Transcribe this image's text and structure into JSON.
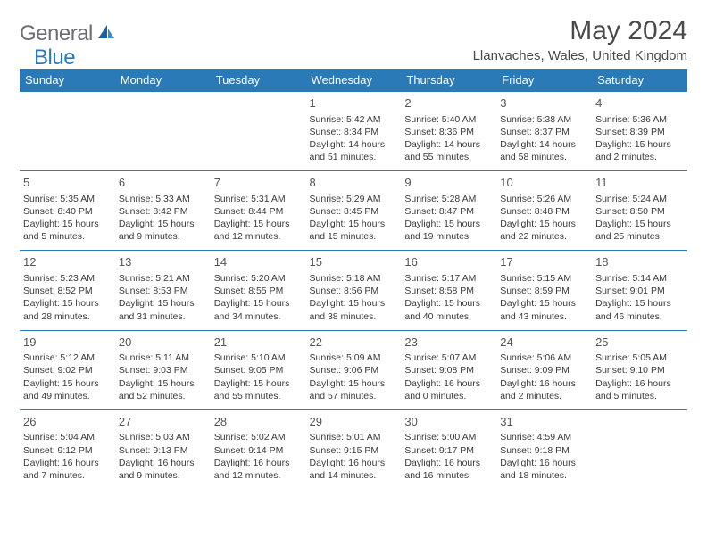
{
  "brand": {
    "part1": "General",
    "part2": "Blue"
  },
  "title": "May 2024",
  "location": "Llanvaches, Wales, United Kingdom",
  "colors": {
    "header_bg": "#2a7ab8",
    "border": "#2a7ab8",
    "text": "#3a3a3a"
  },
  "day_headers": [
    "Sunday",
    "Monday",
    "Tuesday",
    "Wednesday",
    "Thursday",
    "Friday",
    "Saturday"
  ],
  "weeks": [
    [
      null,
      null,
      null,
      {
        "n": "1",
        "sr": "5:42 AM",
        "ss": "8:34 PM",
        "dl": "14 hours and 51 minutes."
      },
      {
        "n": "2",
        "sr": "5:40 AM",
        "ss": "8:36 PM",
        "dl": "14 hours and 55 minutes."
      },
      {
        "n": "3",
        "sr": "5:38 AM",
        "ss": "8:37 PM",
        "dl": "14 hours and 58 minutes."
      },
      {
        "n": "4",
        "sr": "5:36 AM",
        "ss": "8:39 PM",
        "dl": "15 hours and 2 minutes."
      }
    ],
    [
      {
        "n": "5",
        "sr": "5:35 AM",
        "ss": "8:40 PM",
        "dl": "15 hours and 5 minutes."
      },
      {
        "n": "6",
        "sr": "5:33 AM",
        "ss": "8:42 PM",
        "dl": "15 hours and 9 minutes."
      },
      {
        "n": "7",
        "sr": "5:31 AM",
        "ss": "8:44 PM",
        "dl": "15 hours and 12 minutes."
      },
      {
        "n": "8",
        "sr": "5:29 AM",
        "ss": "8:45 PM",
        "dl": "15 hours and 15 minutes."
      },
      {
        "n": "9",
        "sr": "5:28 AM",
        "ss": "8:47 PM",
        "dl": "15 hours and 19 minutes."
      },
      {
        "n": "10",
        "sr": "5:26 AM",
        "ss": "8:48 PM",
        "dl": "15 hours and 22 minutes."
      },
      {
        "n": "11",
        "sr": "5:24 AM",
        "ss": "8:50 PM",
        "dl": "15 hours and 25 minutes."
      }
    ],
    [
      {
        "n": "12",
        "sr": "5:23 AM",
        "ss": "8:52 PM",
        "dl": "15 hours and 28 minutes."
      },
      {
        "n": "13",
        "sr": "5:21 AM",
        "ss": "8:53 PM",
        "dl": "15 hours and 31 minutes."
      },
      {
        "n": "14",
        "sr": "5:20 AM",
        "ss": "8:55 PM",
        "dl": "15 hours and 34 minutes."
      },
      {
        "n": "15",
        "sr": "5:18 AM",
        "ss": "8:56 PM",
        "dl": "15 hours and 38 minutes."
      },
      {
        "n": "16",
        "sr": "5:17 AM",
        "ss": "8:58 PM",
        "dl": "15 hours and 40 minutes."
      },
      {
        "n": "17",
        "sr": "5:15 AM",
        "ss": "8:59 PM",
        "dl": "15 hours and 43 minutes."
      },
      {
        "n": "18",
        "sr": "5:14 AM",
        "ss": "9:01 PM",
        "dl": "15 hours and 46 minutes."
      }
    ],
    [
      {
        "n": "19",
        "sr": "5:12 AM",
        "ss": "9:02 PM",
        "dl": "15 hours and 49 minutes."
      },
      {
        "n": "20",
        "sr": "5:11 AM",
        "ss": "9:03 PM",
        "dl": "15 hours and 52 minutes."
      },
      {
        "n": "21",
        "sr": "5:10 AM",
        "ss": "9:05 PM",
        "dl": "15 hours and 55 minutes."
      },
      {
        "n": "22",
        "sr": "5:09 AM",
        "ss": "9:06 PM",
        "dl": "15 hours and 57 minutes."
      },
      {
        "n": "23",
        "sr": "5:07 AM",
        "ss": "9:08 PM",
        "dl": "16 hours and 0 minutes."
      },
      {
        "n": "24",
        "sr": "5:06 AM",
        "ss": "9:09 PM",
        "dl": "16 hours and 2 minutes."
      },
      {
        "n": "25",
        "sr": "5:05 AM",
        "ss": "9:10 PM",
        "dl": "16 hours and 5 minutes."
      }
    ],
    [
      {
        "n": "26",
        "sr": "5:04 AM",
        "ss": "9:12 PM",
        "dl": "16 hours and 7 minutes."
      },
      {
        "n": "27",
        "sr": "5:03 AM",
        "ss": "9:13 PM",
        "dl": "16 hours and 9 minutes."
      },
      {
        "n": "28",
        "sr": "5:02 AM",
        "ss": "9:14 PM",
        "dl": "16 hours and 12 minutes."
      },
      {
        "n": "29",
        "sr": "5:01 AM",
        "ss": "9:15 PM",
        "dl": "16 hours and 14 minutes."
      },
      {
        "n": "30",
        "sr": "5:00 AM",
        "ss": "9:17 PM",
        "dl": "16 hours and 16 minutes."
      },
      {
        "n": "31",
        "sr": "4:59 AM",
        "ss": "9:18 PM",
        "dl": "16 hours and 18 minutes."
      },
      null
    ]
  ],
  "labels": {
    "sunrise": "Sunrise:",
    "sunset": "Sunset:",
    "daylight": "Daylight:"
  }
}
